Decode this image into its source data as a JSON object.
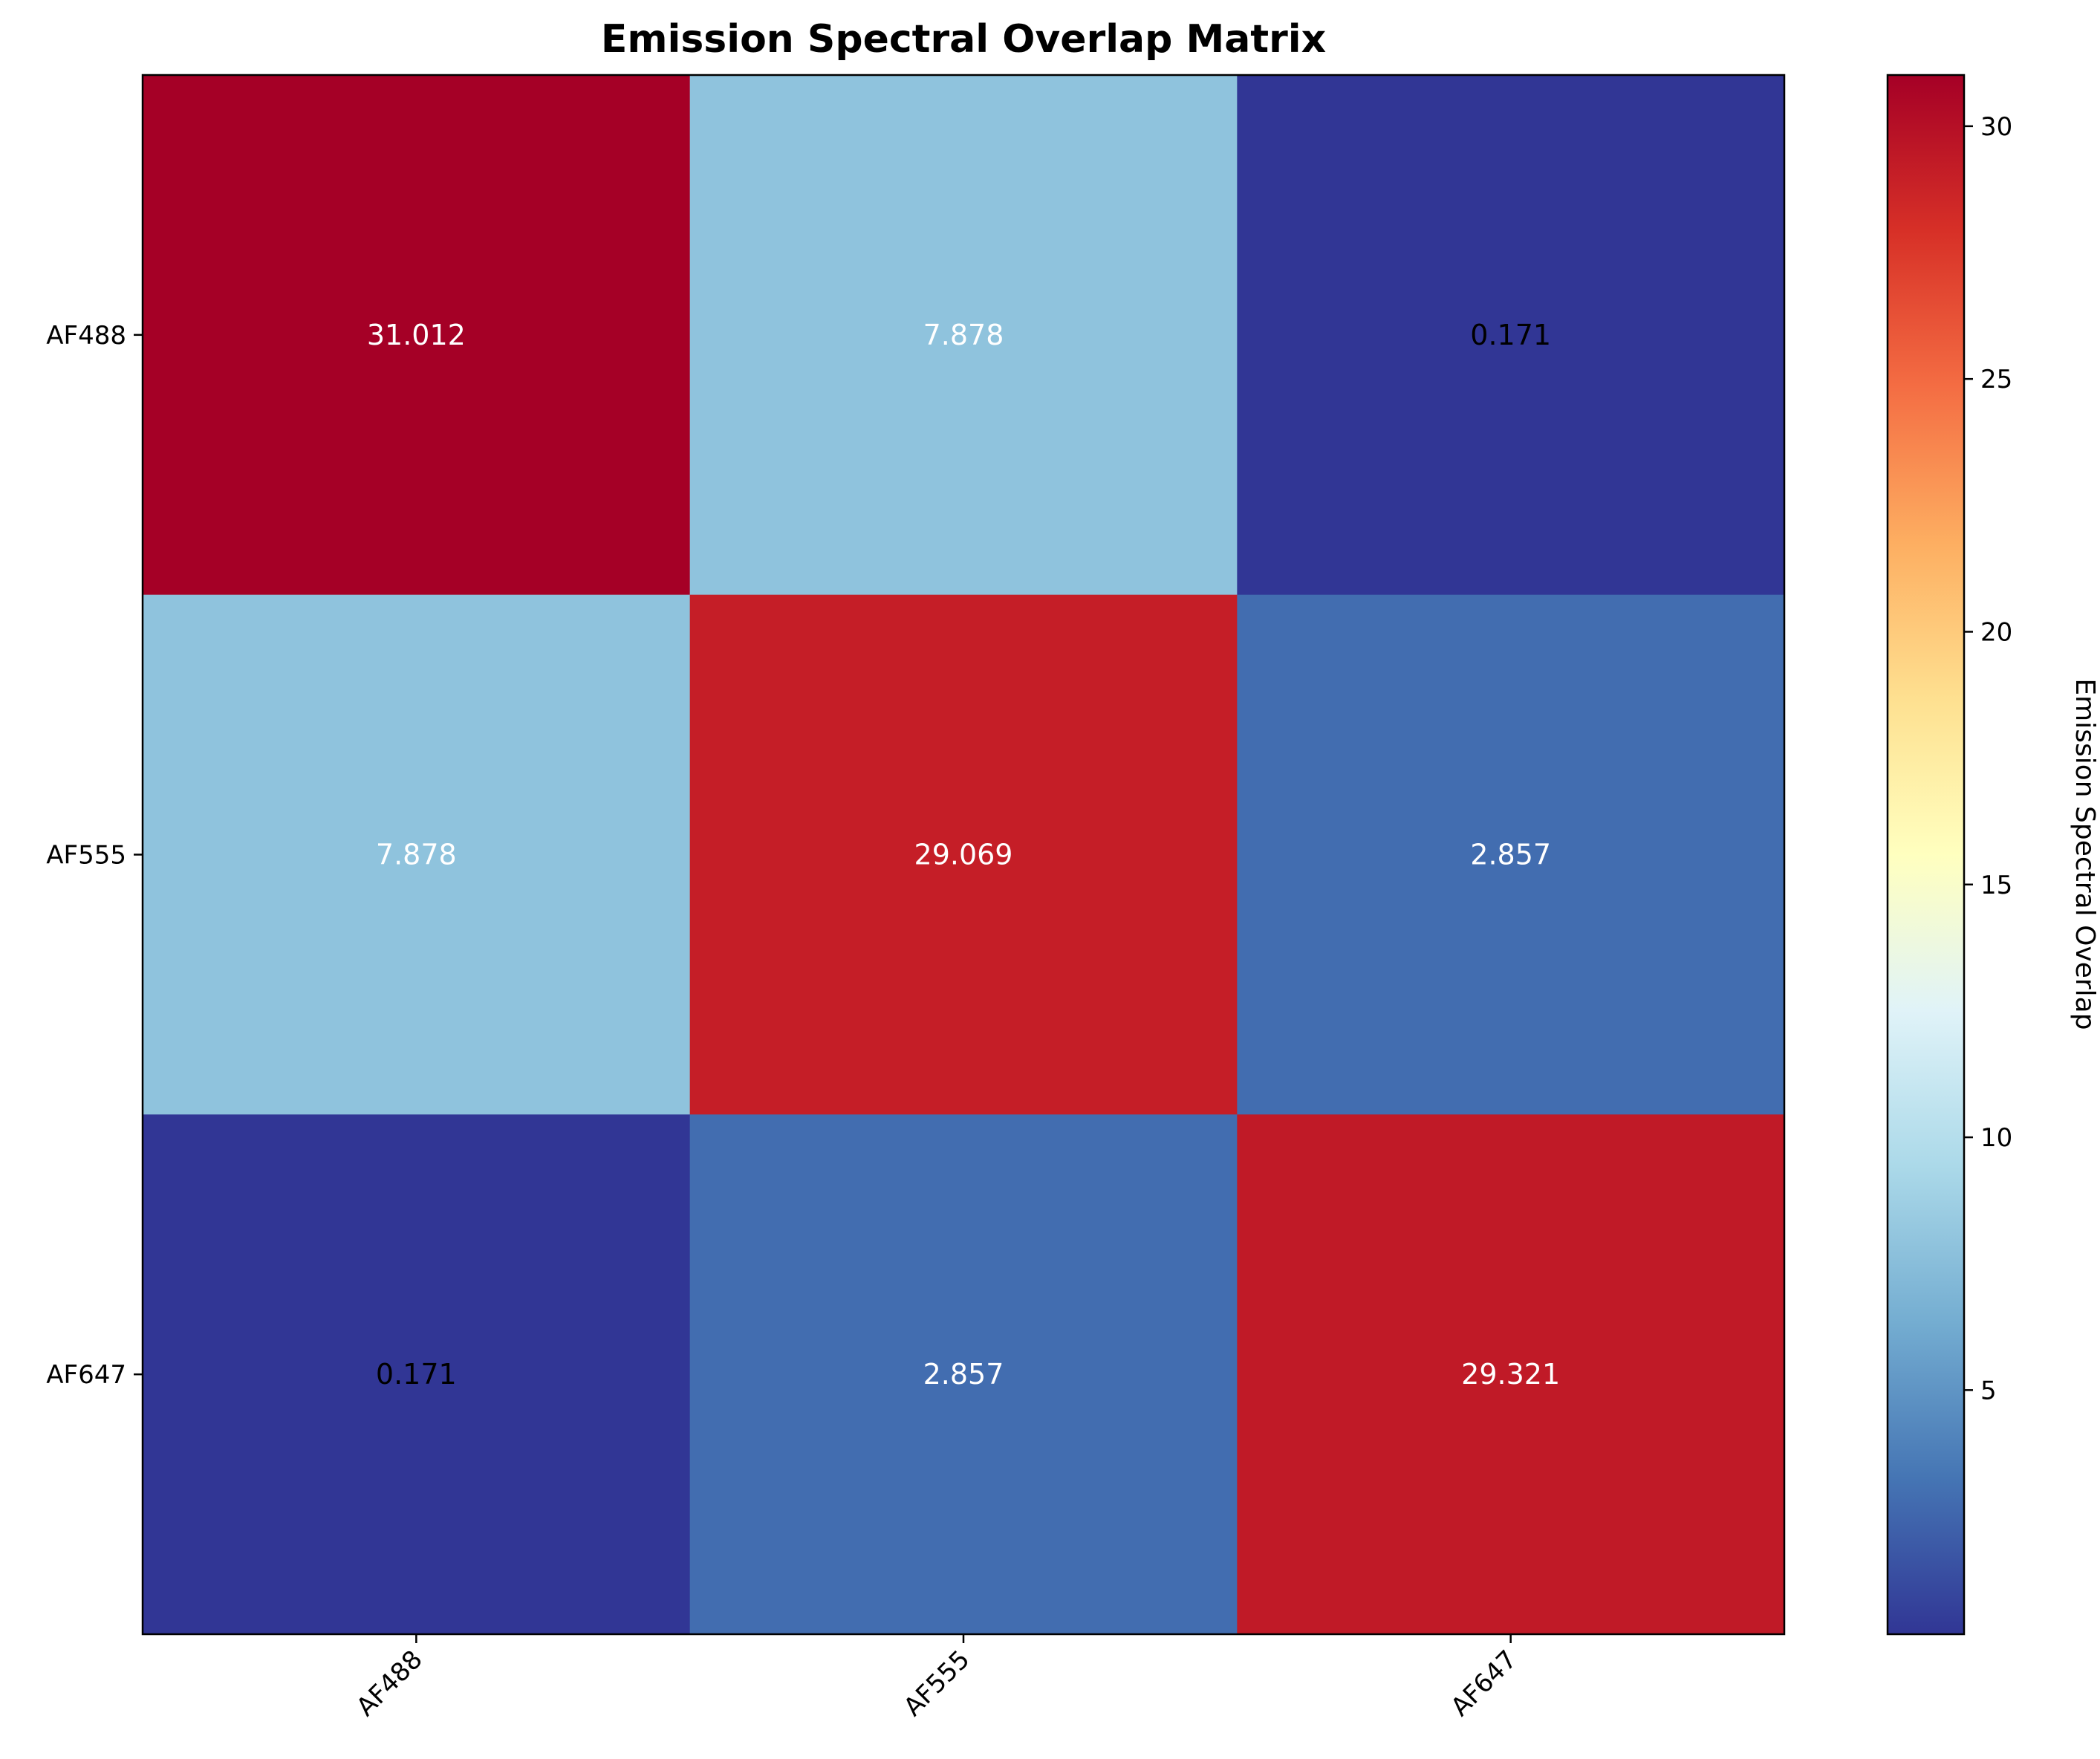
{
  "chart_data": {
    "type": "heatmap",
    "title": "Emission Spectral Overlap Matrix",
    "x_labels": [
      "AF488",
      "AF555",
      "AF647"
    ],
    "y_labels": [
      "AF488",
      "AF555",
      "AF647"
    ],
    "values": [
      [
        31.012,
        7.878,
        0.171
      ],
      [
        7.878,
        29.069,
        2.857
      ],
      [
        0.171,
        2.857,
        29.321
      ]
    ],
    "value_labels": [
      [
        "31.012",
        "7.878",
        "0.171"
      ],
      [
        "7.878",
        "29.069",
        "2.857"
      ],
      [
        "0.171",
        "2.857",
        "29.321"
      ]
    ],
    "colormap": "RdYlBu_r",
    "colorbar": {
      "label": "Emission Spectral Overlap",
      "range": [
        0.171,
        31.012
      ],
      "ticks": [
        5,
        10,
        15,
        20,
        25,
        30
      ]
    },
    "grid": false
  }
}
